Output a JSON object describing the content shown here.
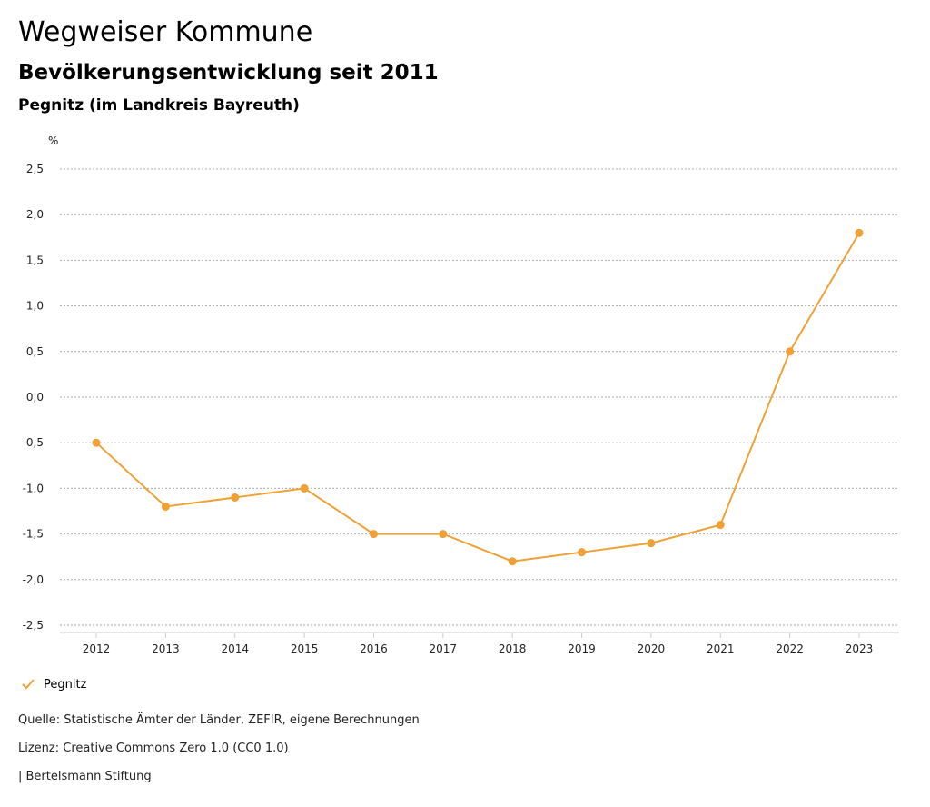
{
  "header": {
    "title": "Wegweiser Kommune",
    "subtitle": "Bevölkerungsentwicklung seit 2011",
    "region": "Pegnitz (im Landkreis Bayreuth)"
  },
  "chart_data": {
    "type": "line",
    "title": "Bevölkerungsentwicklung seit 2011",
    "ylabel": "%",
    "xlabel": "",
    "categories": [
      "2012",
      "2013",
      "2014",
      "2015",
      "2016",
      "2017",
      "2018",
      "2019",
      "2020",
      "2021",
      "2022",
      "2023"
    ],
    "series": [
      {
        "name": "Pegnitz",
        "color": "#f0a035",
        "values": [
          -0.5,
          -1.2,
          -1.1,
          -1.0,
          -1.5,
          -1.5,
          -1.8,
          -1.7,
          -1.6,
          -1.4,
          0.5,
          1.8
        ]
      }
    ],
    "y_ticks": [
      2.5,
      2.0,
      1.5,
      1.0,
      0.5,
      0.0,
      -0.5,
      -1.0,
      -1.5,
      -2.0,
      -2.5
    ],
    "y_tick_labels": [
      "2,5",
      "2,0",
      "1,5",
      "1,0",
      "0,5",
      "0,0",
      "-0,5",
      "-1,0",
      "-1,5",
      "-2,0",
      "-2,5"
    ],
    "ylim": [
      -2.5,
      2.5
    ],
    "grid": true,
    "legend": "bottom-left"
  },
  "legend": {
    "label": "Pegnitz"
  },
  "footer": {
    "source": "Quelle: Statistische Ämter der Länder, ZEFIR, eigene Berechnungen",
    "license": "Lizenz: Creative Commons Zero 1.0 (CC0 1.0)",
    "brand": "| Bertelsmann Stiftung"
  }
}
